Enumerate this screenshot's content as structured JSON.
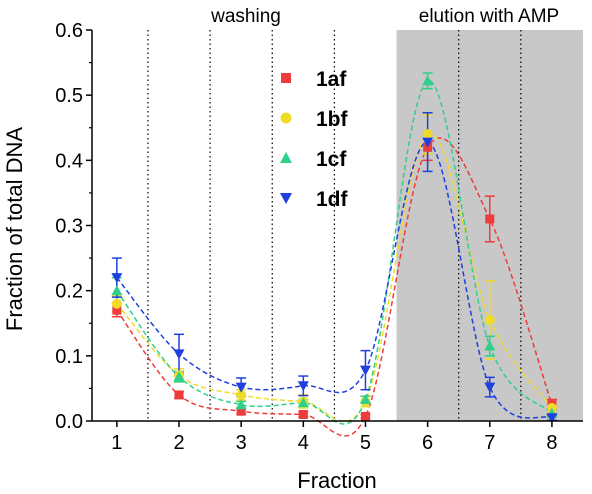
{
  "chart_data": {
    "type": "scatter",
    "title": "",
    "xlabel": "Fraction",
    "ylabel": "Fraction of total DNA",
    "xlim": [
      0.6,
      8.5
    ],
    "ylim": [
      0,
      0.6
    ],
    "x_ticks": [
      "1",
      "2",
      "3",
      "4",
      "5",
      "6",
      "7",
      "8"
    ],
    "y_ticks": [
      "0.0",
      "0.1",
      "0.2",
      "0.3",
      "0.4",
      "0.5",
      "0.6"
    ],
    "x": [
      1,
      2,
      3,
      4,
      5,
      6,
      7,
      8
    ],
    "separators_at": [
      1.5,
      2.5,
      3.5,
      4.5,
      6.5,
      7.5
    ],
    "shaded_region": {
      "from": 5.5,
      "to": 8.5,
      "color": "#c8c8c8"
    },
    "annotations": {
      "washing": "washing",
      "elution": "elution with AMP"
    },
    "legend_position": "upper-center",
    "grid": false,
    "series": [
      {
        "name": "1af",
        "color": "#ee3b3b",
        "marker": "square",
        "values": [
          0.17,
          0.04,
          0.015,
          0.01,
          0.007,
          0.42,
          0.31,
          0.025
        ],
        "errors": [
          0.01,
          0.005,
          0.004,
          0.004,
          0.003,
          0.02,
          0.035,
          0.008
        ]
      },
      {
        "name": "1bf",
        "color": "#f0dc28",
        "marker": "circle",
        "values": [
          0.18,
          0.07,
          0.04,
          0.03,
          0.03,
          0.44,
          0.155,
          0.02
        ],
        "errors": [
          0.012,
          0.01,
          0.008,
          0.01,
          0.008,
          0.03,
          0.06,
          0.008
        ]
      },
      {
        "name": "1cf",
        "color": "#2fd08a",
        "marker": "triangle-up",
        "values": [
          0.2,
          0.068,
          0.025,
          0.028,
          0.033,
          0.522,
          0.115,
          0.012
        ],
        "errors": [
          0.02,
          0.008,
          0.005,
          0.005,
          0.005,
          0.012,
          0.015,
          0.006
        ]
      },
      {
        "name": "1df",
        "color": "#1f3fe0",
        "marker": "triangle-down",
        "values": [
          0.22,
          0.103,
          0.052,
          0.054,
          0.078,
          0.428,
          0.052,
          0.005
        ],
        "errors": [
          0.03,
          0.03,
          0.014,
          0.015,
          0.03,
          0.045,
          0.015,
          0.004
        ]
      }
    ]
  }
}
